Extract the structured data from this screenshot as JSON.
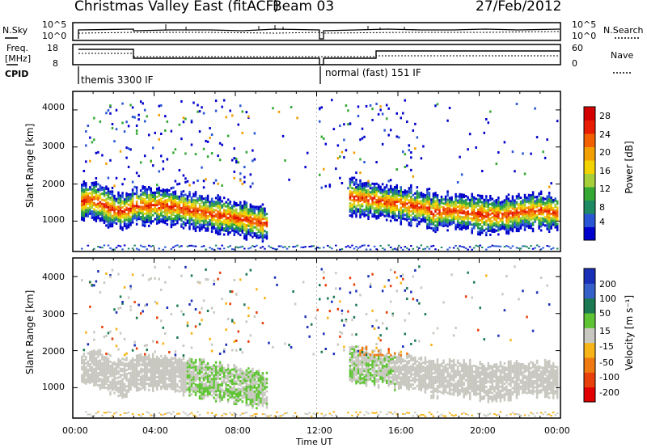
{
  "header": {
    "title": "Christmas Valley East (fitACF)",
    "beam": "Beam 03",
    "date": "27/Feb/2012"
  },
  "top_panels": {
    "nsky_label": "N.Sky",
    "nsky_ticks": [
      "10^5",
      "10^0"
    ],
    "nsearch_label": "N.Search",
    "nsearch_ticks": [
      "10^5",
      "10^0"
    ],
    "freq_label": "Freq.",
    "freq_unit": "[MHz]",
    "freq_ticks": [
      "18",
      "8"
    ],
    "nave_label": "Nave",
    "nave_ticks": [
      "60",
      "0"
    ],
    "cpid_label": "CPID",
    "cpid_modes": [
      "themis 3300 IF",
      "normal (fast) 151 IF"
    ]
  },
  "chart_data": [
    {
      "type": "heatmap",
      "name": "power-panel",
      "ylabel": "Slant Range [km]",
      "yticks": [
        "4000",
        "3000",
        "2000",
        "1000"
      ],
      "ylim": [
        180,
        4500
      ],
      "x_range_hours": [
        0,
        24
      ],
      "colorbar": {
        "label": "Power [dB]",
        "ticks": [
          "28",
          "24",
          "20",
          "16",
          "12",
          "8",
          "4"
        ],
        "colors": [
          "#0000cc",
          "#2a56d6",
          "#1e8a64",
          "#34a832",
          "#a6cf3a",
          "#f2d300",
          "#f29f00",
          "#f26000",
          "#e81c00",
          "#d40000"
        ]
      }
    },
    {
      "type": "heatmap",
      "name": "velocity-panel",
      "ylabel": "Slant Range [km]",
      "yticks": [
        "4000",
        "3000",
        "2000",
        "1000"
      ],
      "ylim": [
        180,
        4500
      ],
      "x_range_hours": [
        0,
        24
      ],
      "colorbar": {
        "label": "Velocity [m s⁻¹]",
        "ticks": [
          "200",
          "100",
          "50",
          "15",
          "-15",
          "-50",
          "-100",
          "-200"
        ],
        "colors": [
          "#1a2fb8",
          "#3560c9",
          "#1b7a52",
          "#5fc434",
          "#c8c8c0",
          "#f7b418",
          "#ef7a12",
          "#e8400a",
          "#e00000"
        ]
      }
    }
  ],
  "xaxis": {
    "label": "Time UT",
    "ticks": [
      "00:00",
      "04:00",
      "08:00",
      "12:00",
      "16:00",
      "20:00",
      "00:00"
    ]
  }
}
